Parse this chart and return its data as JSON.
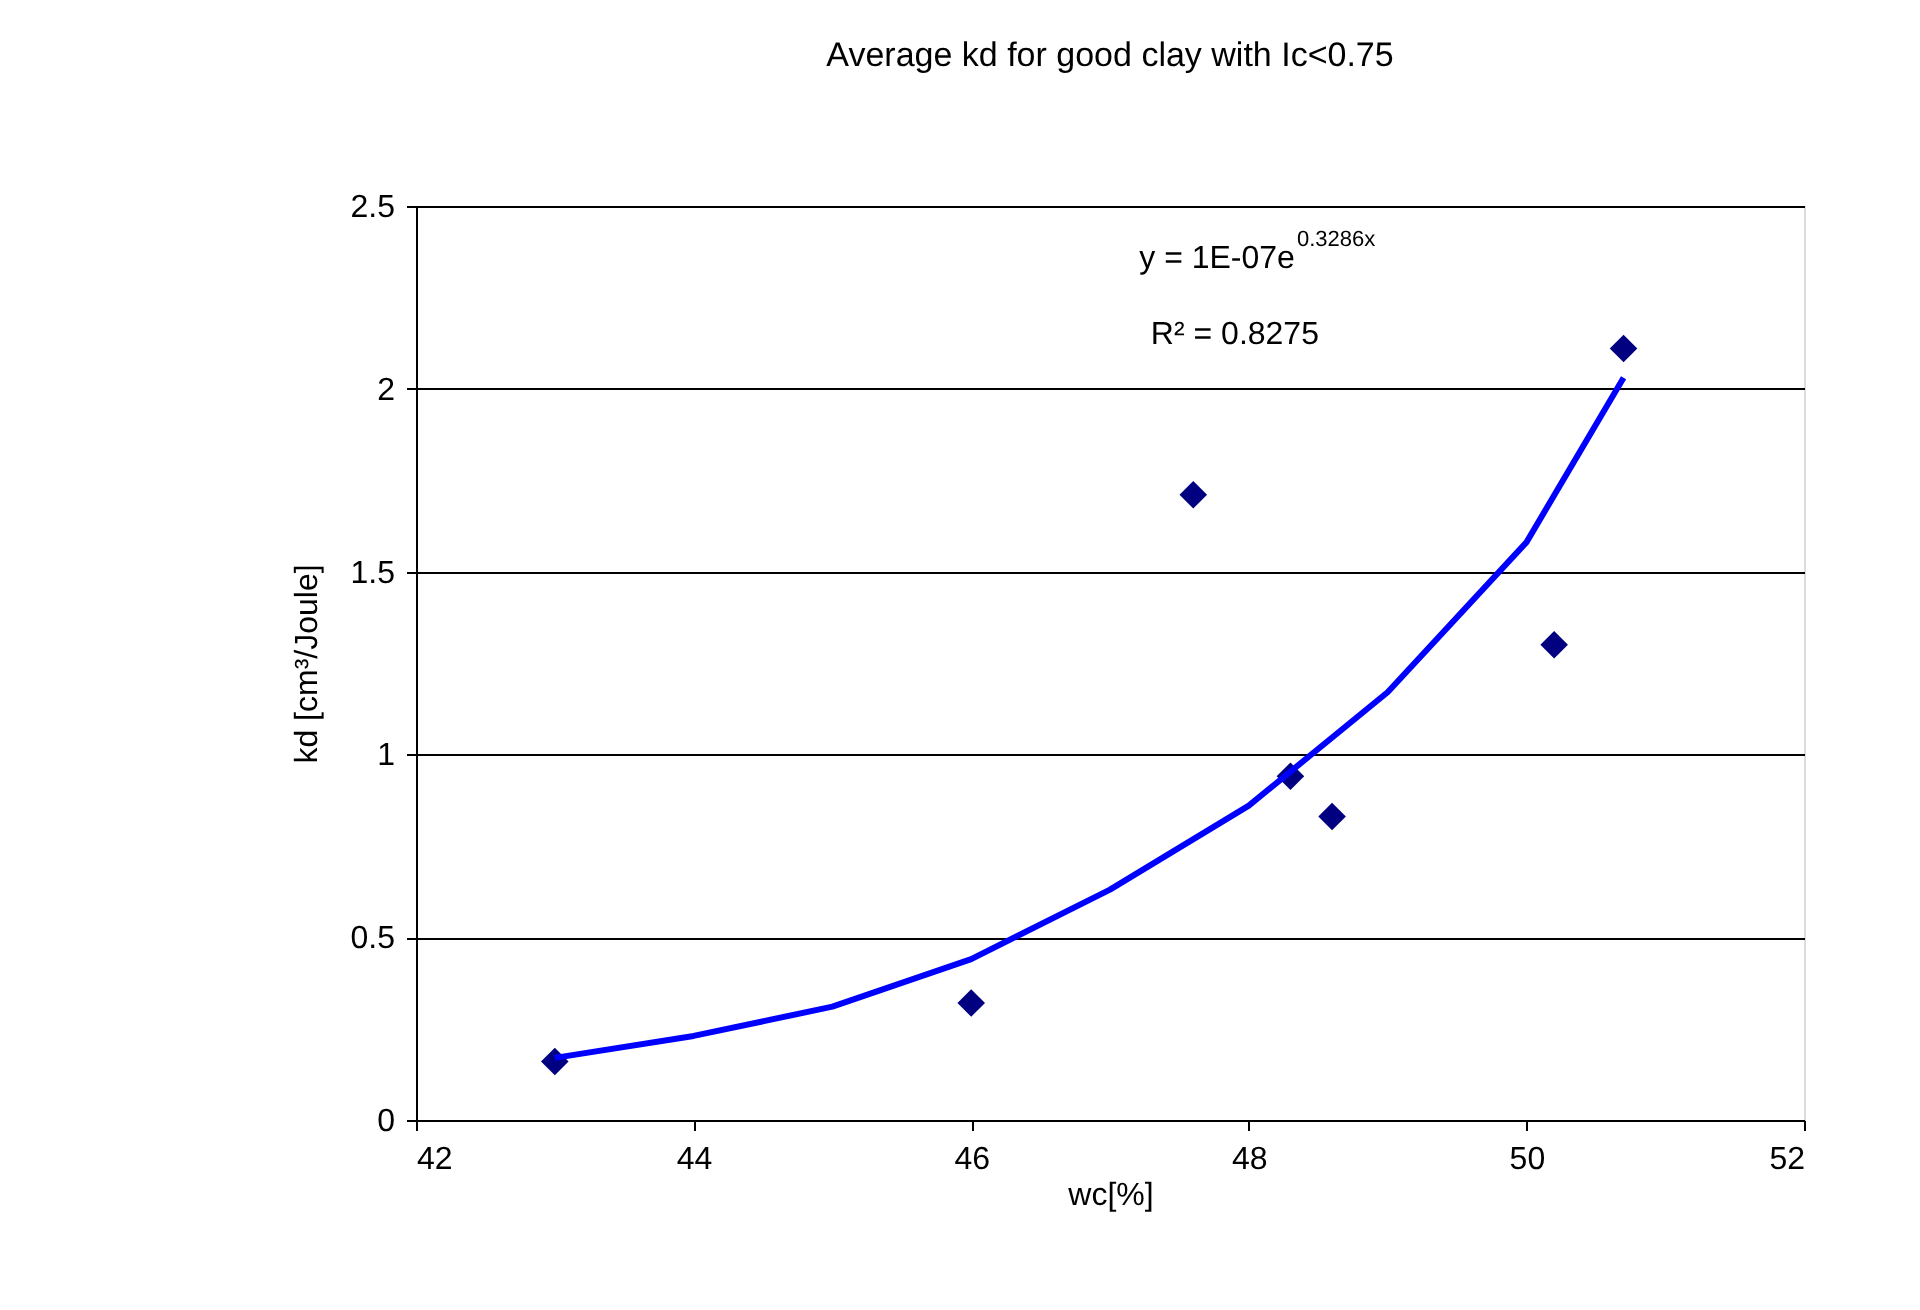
{
  "chart_data": {
    "type": "scatter",
    "title": "Average kd for good clay with Ic<0.75",
    "xlabel": "wc[%]",
    "ylabel": "kd [cm³/Joule]",
    "xlim": [
      42,
      52
    ],
    "xticks": [
      42,
      44,
      46,
      48,
      50,
      52
    ],
    "ylim": [
      0,
      2.5
    ],
    "yticks": [
      0,
      0.5,
      1,
      1.5,
      2,
      2.5
    ],
    "grid": "y",
    "legend": false,
    "annotations": [
      "y = 1E-07e$^{0.3286x}$",
      "R² = 0.8275"
    ],
    "series": [
      {
        "color": "#000080",
        "marker": "diamond",
        "x": [
          43.0,
          46.0,
          47.6,
          48.3,
          48.6,
          50.2,
          50.7
        ],
        "values": [
          0.16,
          0.32,
          1.71,
          0.94,
          0.83,
          1.3,
          2.11
        ]
      },
      {
        "type": "line",
        "color": "#0000ff",
        "marker": "none",
        "line_style": "solid",
        "x": [
          43.0,
          44.0,
          45.0,
          46.0,
          47.0,
          48.0,
          49.0,
          50.0,
          50.7
        ],
        "values": [
          0.17,
          0.23,
          0.31,
          0.44,
          0.63,
          0.86,
          1.17,
          1.58,
          2.03
        ]
      }
    ]
  }
}
